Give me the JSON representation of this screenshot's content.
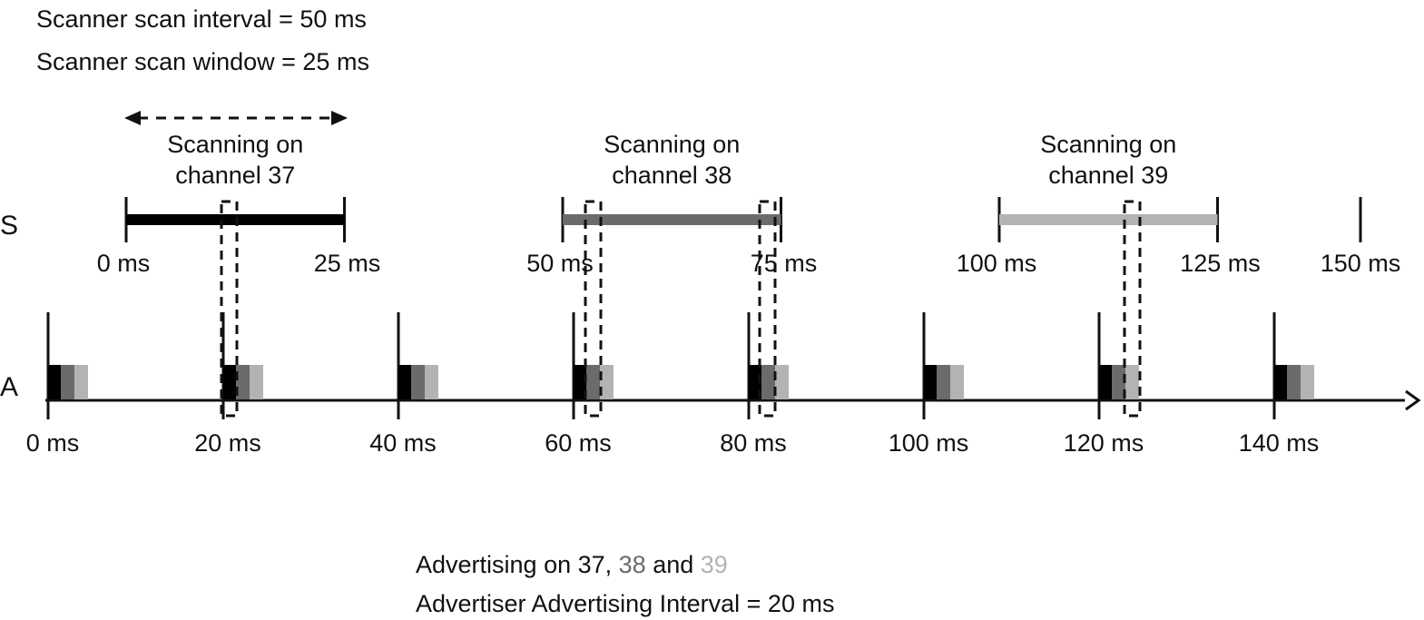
{
  "header": {
    "line1": "Scanner scan interval = 50 ms",
    "line2": "Scanner scan window = 25 ms"
  },
  "rows": {
    "scanner_label": "S",
    "advertiser_label": "A"
  },
  "colors": {
    "ch37": "#000000",
    "ch38": "#6b6b6b",
    "ch39": "#b3b3b3",
    "ink": "#111111"
  },
  "scan_windows": [
    {
      "line1": "Scanning on",
      "line2": "channel 37",
      "start": "0 ms",
      "end": "25 ms",
      "start_ms": 0,
      "channel": 37
    },
    {
      "line1": "Scanning on",
      "line2": "channel 38",
      "start": "50 ms",
      "end": "75 ms",
      "start_ms": 50,
      "channel": 38
    },
    {
      "line1": "Scanning on",
      "line2": "channel 39",
      "start": "100 ms",
      "end": "125 ms",
      "start_ms": 100,
      "channel": 39
    }
  ],
  "scanner_end_tick": {
    "label": "150 ms",
    "ms": 150
  },
  "advertising_events": [
    {
      "label": "0 ms",
      "ms": 0
    },
    {
      "label": "20 ms",
      "ms": 20
    },
    {
      "label": "40 ms",
      "ms": 40
    },
    {
      "label": "60 ms",
      "ms": 60
    },
    {
      "label": "80 ms",
      "ms": 80
    },
    {
      "label": "100 ms",
      "ms": 100
    },
    {
      "label": "120 ms",
      "ms": 120
    },
    {
      "label": "140 ms",
      "ms": 140
    }
  ],
  "footer": {
    "line1_prefix": "Advertising on 37, ",
    "ch38": "38",
    "and_text": " and ",
    "ch39": "39",
    "line2": "Advertiser Advertising Interval = 20 ms"
  }
}
